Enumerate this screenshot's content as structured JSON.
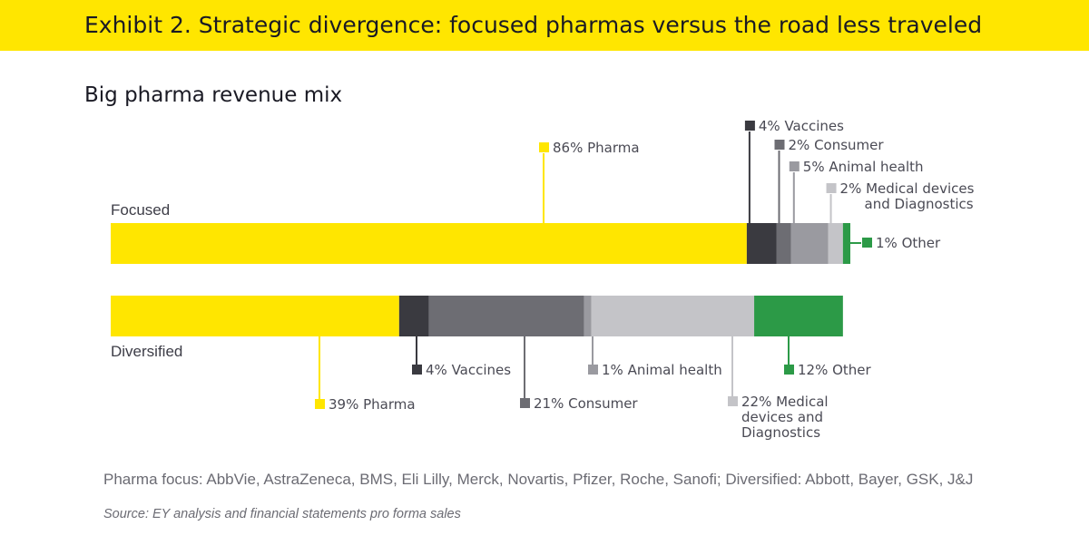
{
  "header": {
    "exhibit_title": "Exhibit 2. Strategic divergence: focused pharmas versus the road less traveled"
  },
  "subtitle": "Big pharma revenue mix",
  "chart_data": {
    "type": "bar",
    "orientation": "horizontal",
    "stacked": true,
    "title": "Big pharma revenue mix",
    "categories": [
      "Focused",
      "Diversified"
    ],
    "series": [
      {
        "name": "Pharma",
        "color": "#ffe600",
        "values": [
          86,
          39
        ],
        "labels": [
          "86% Pharma",
          "39% Pharma"
        ]
      },
      {
        "name": "Vaccines",
        "color": "#3a3a40",
        "values": [
          4,
          4
        ],
        "labels": [
          "4% Vaccines",
          "4% Vaccines"
        ]
      },
      {
        "name": "Consumer",
        "color": "#6d6d73",
        "values": [
          2,
          21
        ],
        "labels": [
          "2% Consumer",
          "21% Consumer"
        ]
      },
      {
        "name": "Animal health",
        "color": "#9a9aa0",
        "values": [
          5,
          1
        ],
        "labels": [
          "5% Animal health",
          "1% Animal health"
        ]
      },
      {
        "name": "Medical devices and Diagnostics",
        "color": "#c4c4c8",
        "values": [
          2,
          22
        ],
        "labels": [
          [
            "2% Medical devices",
            "and Diagnostics"
          ],
          [
            "22% Medical",
            "devices and",
            "Diagnostics"
          ]
        ]
      },
      {
        "name": "Other",
        "color": "#2c9a47",
        "values": [
          1,
          12
        ],
        "labels": [
          "1% Other",
          "12% Other"
        ]
      }
    ],
    "xlim": [
      0,
      100
    ],
    "grid": false,
    "legend": "none"
  },
  "footer": {
    "note": "Pharma focus: AbbVie, AstraZeneca, BMS, Eli Lilly, Merck, Novartis, Pfizer, Roche, Sanofi; Diversified: Abbott, Bayer, GSK, J&J",
    "source": "Source: EY analysis and financial statements pro forma sales"
  }
}
